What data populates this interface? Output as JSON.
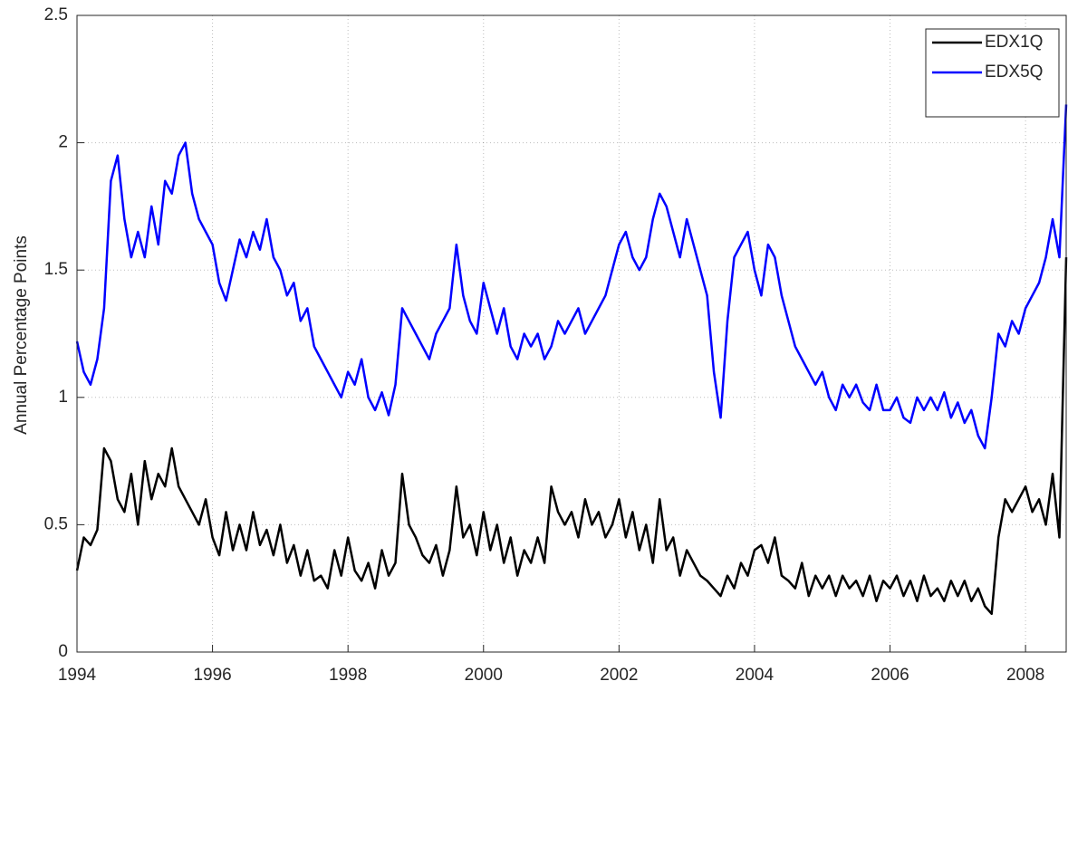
{
  "chart_data": {
    "type": "line",
    "ylabel": "Annual Percentage Points",
    "x": [
      1994.0,
      1994.1,
      1994.2,
      1994.3,
      1994.4,
      1994.5,
      1994.6,
      1994.7,
      1994.8,
      1994.9,
      1995.0,
      1995.1,
      1995.2,
      1995.3,
      1995.4,
      1995.5,
      1995.6,
      1995.7,
      1995.8,
      1995.9,
      1996.0,
      1996.1,
      1996.2,
      1996.3,
      1996.4,
      1996.5,
      1996.6,
      1996.7,
      1996.8,
      1996.9,
      1997.0,
      1997.1,
      1997.2,
      1997.3,
      1997.4,
      1997.5,
      1997.6,
      1997.7,
      1997.8,
      1997.9,
      1998.0,
      1998.1,
      1998.2,
      1998.3,
      1998.4,
      1998.5,
      1998.6,
      1998.7,
      1998.8,
      1998.9,
      1999.0,
      1999.1,
      1999.2,
      1999.3,
      1999.4,
      1999.5,
      1999.6,
      1999.7,
      1999.8,
      1999.9,
      2000.0,
      2000.1,
      2000.2,
      2000.3,
      2000.4,
      2000.5,
      2000.6,
      2000.7,
      2000.8,
      2000.9,
      2001.0,
      2001.1,
      2001.2,
      2001.3,
      2001.4,
      2001.5,
      2001.6,
      2001.7,
      2001.8,
      2001.9,
      2002.0,
      2002.1,
      2002.2,
      2002.3,
      2002.4,
      2002.5,
      2002.6,
      2002.7,
      2002.8,
      2002.9,
      2003.0,
      2003.1,
      2003.2,
      2003.3,
      2003.4,
      2003.5,
      2003.6,
      2003.7,
      2003.8,
      2003.9,
      2004.0,
      2004.1,
      2004.2,
      2004.3,
      2004.4,
      2004.5,
      2004.6,
      2004.7,
      2004.8,
      2004.9,
      2005.0,
      2005.1,
      2005.2,
      2005.3,
      2005.4,
      2005.5,
      2005.6,
      2005.7,
      2005.8,
      2005.9,
      2006.0,
      2006.1,
      2006.2,
      2006.3,
      2006.4,
      2006.5,
      2006.6,
      2006.7,
      2006.8,
      2006.9,
      2007.0,
      2007.1,
      2007.2,
      2007.3,
      2007.4,
      2007.5,
      2007.6,
      2007.7,
      2007.8,
      2007.9,
      2008.0,
      2008.1,
      2008.2,
      2008.3,
      2008.4,
      2008.5,
      2008.6
    ],
    "series": [
      {
        "name": "EDX1Q",
        "color": "#000000",
        "values": [
          0.32,
          0.45,
          0.42,
          0.48,
          0.8,
          0.75,
          0.6,
          0.55,
          0.7,
          0.5,
          0.75,
          0.6,
          0.7,
          0.65,
          0.8,
          0.65,
          0.6,
          0.55,
          0.5,
          0.6,
          0.45,
          0.38,
          0.55,
          0.4,
          0.5,
          0.4,
          0.55,
          0.42,
          0.48,
          0.38,
          0.5,
          0.35,
          0.42,
          0.3,
          0.4,
          0.28,
          0.3,
          0.25,
          0.4,
          0.3,
          0.45,
          0.32,
          0.28,
          0.35,
          0.25,
          0.4,
          0.3,
          0.35,
          0.7,
          0.5,
          0.45,
          0.38,
          0.35,
          0.42,
          0.3,
          0.4,
          0.65,
          0.45,
          0.5,
          0.38,
          0.55,
          0.4,
          0.5,
          0.35,
          0.45,
          0.3,
          0.4,
          0.35,
          0.45,
          0.35,
          0.65,
          0.55,
          0.5,
          0.55,
          0.45,
          0.6,
          0.5,
          0.55,
          0.45,
          0.5,
          0.6,
          0.45,
          0.55,
          0.4,
          0.5,
          0.35,
          0.6,
          0.4,
          0.45,
          0.3,
          0.4,
          0.35,
          0.3,
          0.28,
          0.25,
          0.22,
          0.3,
          0.25,
          0.35,
          0.3,
          0.4,
          0.42,
          0.35,
          0.45,
          0.3,
          0.28,
          0.25,
          0.35,
          0.22,
          0.3,
          0.25,
          0.3,
          0.22,
          0.3,
          0.25,
          0.28,
          0.22,
          0.3,
          0.2,
          0.28,
          0.25,
          0.3,
          0.22,
          0.28,
          0.2,
          0.3,
          0.22,
          0.25,
          0.2,
          0.28,
          0.22,
          0.28,
          0.2,
          0.25,
          0.18,
          0.15,
          0.45,
          0.6,
          0.55,
          0.6,
          0.65,
          0.55,
          0.6,
          0.5,
          0.7,
          0.45,
          1.55
        ]
      },
      {
        "name": "EDX5Q",
        "color": "#0000ff",
        "values": [
          1.22,
          1.1,
          1.05,
          1.15,
          1.35,
          1.85,
          1.95,
          1.7,
          1.55,
          1.65,
          1.55,
          1.75,
          1.6,
          1.85,
          1.8,
          1.95,
          2.0,
          1.8,
          1.7,
          1.65,
          1.6,
          1.45,
          1.38,
          1.5,
          1.62,
          1.55,
          1.65,
          1.58,
          1.7,
          1.55,
          1.5,
          1.4,
          1.45,
          1.3,
          1.35,
          1.2,
          1.15,
          1.1,
          1.05,
          1.0,
          1.1,
          1.05,
          1.15,
          1.0,
          0.95,
          1.02,
          0.93,
          1.05,
          1.35,
          1.3,
          1.25,
          1.2,
          1.15,
          1.25,
          1.3,
          1.35,
          1.6,
          1.4,
          1.3,
          1.25,
          1.45,
          1.35,
          1.25,
          1.35,
          1.2,
          1.15,
          1.25,
          1.2,
          1.25,
          1.15,
          1.2,
          1.3,
          1.25,
          1.3,
          1.35,
          1.25,
          1.3,
          1.35,
          1.4,
          1.5,
          1.6,
          1.65,
          1.55,
          1.5,
          1.55,
          1.7,
          1.8,
          1.75,
          1.65,
          1.55,
          1.7,
          1.6,
          1.5,
          1.4,
          1.1,
          0.92,
          1.3,
          1.55,
          1.6,
          1.65,
          1.5,
          1.4,
          1.6,
          1.55,
          1.4,
          1.3,
          1.2,
          1.15,
          1.1,
          1.05,
          1.1,
          1.0,
          0.95,
          1.05,
          1.0,
          1.05,
          0.98,
          0.95,
          1.05,
          0.95,
          0.95,
          1.0,
          0.92,
          0.9,
          1.0,
          0.95,
          1.0,
          0.95,
          1.02,
          0.92,
          0.98,
          0.9,
          0.95,
          0.85,
          0.8,
          1.0,
          1.25,
          1.2,
          1.3,
          1.25,
          1.35,
          1.4,
          1.45,
          1.55,
          1.7,
          1.55,
          2.15
        ]
      }
    ],
    "xlim": [
      1994.0,
      2008.6
    ],
    "xticks": [
      1994,
      1996,
      1998,
      2000,
      2002,
      2004,
      2006,
      2008
    ],
    "ylim": [
      0,
      2.5
    ],
    "yticks": [
      0,
      0.5,
      1,
      1.5,
      2,
      2.5
    ],
    "grid": true,
    "legend": "northeast"
  }
}
